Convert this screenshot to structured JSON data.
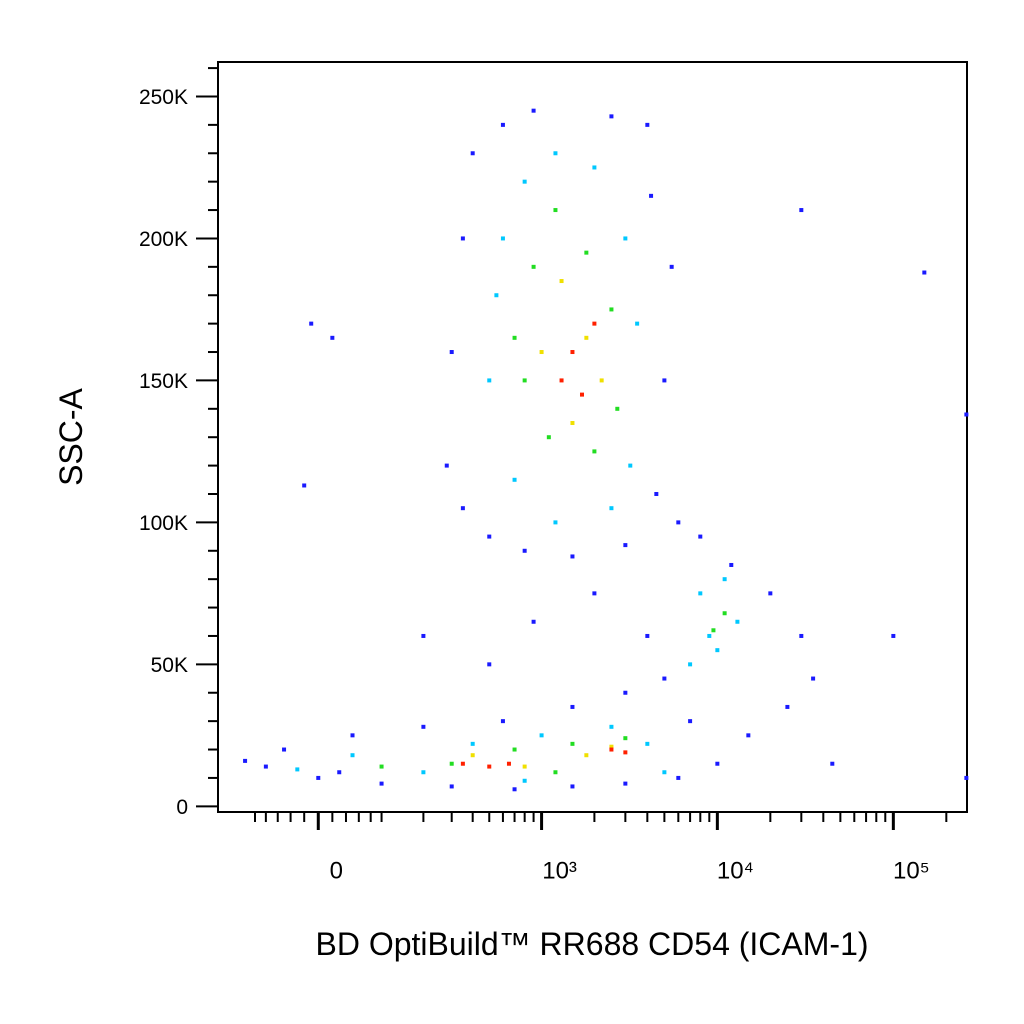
{
  "chart_data": {
    "type": "scatter",
    "xlabel": "BD OptiBuild™ RR688 CD54 (ICAM-1)",
    "ylabel": "SSC-A",
    "xscale": "biexponential",
    "xlim": [
      -186,
      262144
    ],
    "ylim": [
      -2000,
      262144
    ],
    "xticks": [
      0,
      {
        "value": 1000,
        "label": "10³"
      },
      {
        "value": 10000,
        "label": "10⁴"
      },
      {
        "value": 100000,
        "label": "10⁵"
      }
    ],
    "xminorticks": [
      -100,
      -80,
      -60,
      -40,
      -20,
      20,
      40,
      60,
      80,
      100,
      200,
      300,
      400,
      500,
      600,
      700,
      800,
      900,
      2000,
      3000,
      4000,
      5000,
      6000,
      7000,
      8000,
      9000,
      20000,
      30000,
      40000,
      50000,
      60000,
      70000,
      80000,
      90000,
      200000
    ],
    "yticks": [
      0,
      {
        "value": 50000,
        "label": "50K"
      },
      {
        "value": 100000,
        "label": "100K"
      },
      {
        "value": 150000,
        "label": "150K"
      },
      {
        "value": 200000,
        "label": "200K"
      },
      {
        "value": 250000,
        "label": "250K"
      }
    ],
    "yminorticks": [
      10000,
      20000,
      30000,
      40000,
      60000,
      70000,
      80000,
      90000,
      110000,
      120000,
      130000,
      140000,
      160000,
      170000,
      180000,
      190000,
      210000,
      220000,
      230000,
      240000,
      260000
    ],
    "series": [
      {
        "color": "#1a1aff",
        "x": [
          400,
          600,
          900,
          2500,
          4000,
          350,
          300,
          280,
          350,
          500,
          800,
          1500,
          3000,
          4500,
          5000,
          5500,
          4200,
          6000,
          8000,
          12000,
          20000,
          30000,
          35000,
          25000,
          15000,
          10000,
          6000,
          3000,
          1500,
          700,
          300,
          100,
          0,
          -80,
          -50,
          50,
          200,
          600,
          1500,
          3000,
          4000,
          -20,
          -10,
          20,
          100000,
          150000,
          30000,
          200,
          500,
          900,
          2000,
          5000,
          7000,
          45000,
          260000,
          260000,
          -120,
          30
        ],
        "y": [
          230000,
          240000,
          245000,
          243000,
          240000,
          200000,
          160000,
          120000,
          105000,
          95000,
          90000,
          88000,
          92000,
          110000,
          150000,
          190000,
          215000,
          100000,
          95000,
          85000,
          75000,
          60000,
          45000,
          35000,
          25000,
          15000,
          10000,
          8000,
          7000,
          6000,
          7000,
          8000,
          10000,
          14000,
          20000,
          25000,
          28000,
          30000,
          35000,
          40000,
          60000,
          113000,
          170000,
          165000,
          60000,
          188000,
          210000,
          60000,
          50000,
          65000,
          75000,
          45000,
          30000,
          15000,
          138000,
          10000,
          16000,
          12000
        ]
      },
      {
        "color": "#00c8ff",
        "x": [
          600,
          800,
          1200,
          2000,
          3000,
          3500,
          3200,
          2500,
          1200,
          700,
          500,
          550,
          8000,
          10000,
          13000,
          9000,
          11000,
          7000,
          200,
          400,
          1000,
          2500,
          4000,
          -30,
          50,
          5000,
          800
        ],
        "y": [
          200000,
          220000,
          230000,
          225000,
          200000,
          170000,
          120000,
          105000,
          100000,
          115000,
          150000,
          180000,
          75000,
          55000,
          65000,
          60000,
          80000,
          50000,
          12000,
          22000,
          25000,
          28000,
          22000,
          13000,
          18000,
          12000,
          9000
        ]
      },
      {
        "color": "#22dd22",
        "x": [
          900,
          1200,
          1800,
          2500,
          2700,
          2000,
          1100,
          800,
          700,
          11000,
          9500,
          300,
          700,
          1500,
          3000,
          100,
          1200
        ],
        "y": [
          190000,
          210000,
          195000,
          175000,
          140000,
          125000,
          130000,
          150000,
          165000,
          68000,
          62000,
          15000,
          20000,
          22000,
          24000,
          14000,
          12000
        ]
      },
      {
        "color": "#f0e000",
        "x": [
          1300,
          1800,
          2200,
          1000,
          1500,
          400,
          2500,
          800,
          1800
        ],
        "y": [
          185000,
          165000,
          150000,
          160000,
          135000,
          18000,
          21000,
          14000,
          18000
        ]
      },
      {
        "color": "#ff2000",
        "x": [
          1500,
          1700,
          1300,
          2000,
          350,
          500,
          650,
          2500,
          3000
        ],
        "y": [
          160000,
          145000,
          150000,
          170000,
          15000,
          14000,
          15000,
          20000,
          19000
        ]
      }
    ]
  }
}
